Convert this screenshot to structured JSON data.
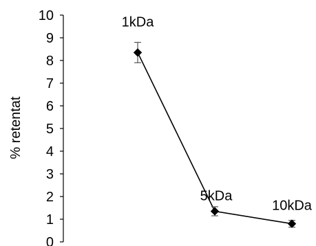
{
  "chart_data": {
    "type": "line",
    "title": "",
    "xlabel": "",
    "ylabel": "% retentat",
    "ylim": [
      0,
      10
    ],
    "yticks": [
      0,
      1,
      2,
      3,
      4,
      5,
      6,
      7,
      8,
      9,
      10
    ],
    "grid": false,
    "legend": "none",
    "line_color": "#000000",
    "marker": "diamond",
    "series": [
      {
        "points": [
          {
            "label": "1kDa",
            "y": 8.35,
            "error": 0.45
          },
          {
            "label": "5kDa",
            "y": 1.35,
            "error": 0.2
          },
          {
            "label": "10kDa",
            "y": 0.8,
            "error": 0.15
          }
        ]
      }
    ]
  }
}
